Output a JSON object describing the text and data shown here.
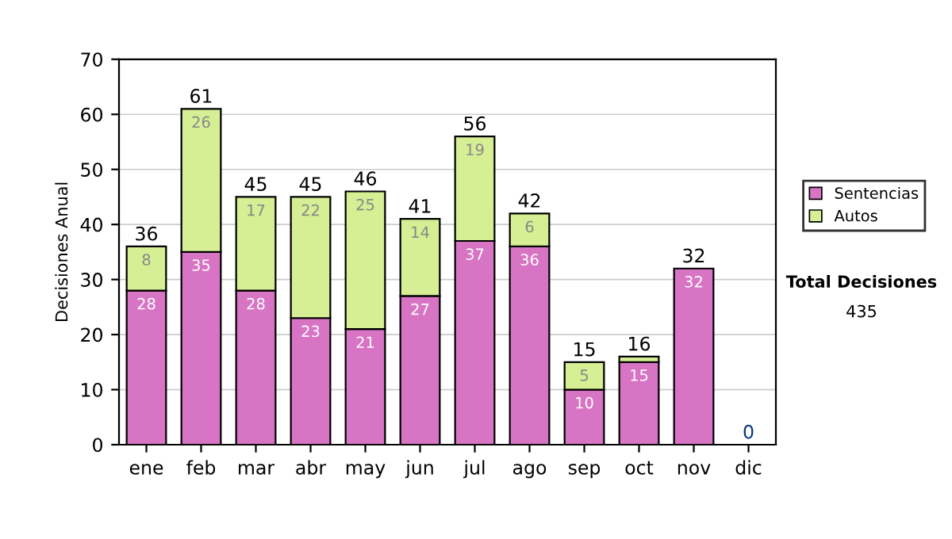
{
  "chart_data": {
    "type": "bar",
    "stacked": true,
    "ylabel": "Decisiones Anual",
    "categories": [
      "ene",
      "feb",
      "mar",
      "abr",
      "may",
      "jun",
      "jul",
      "ago",
      "sep",
      "oct",
      "nov",
      "dic"
    ],
    "series": [
      {
        "name": "Sentencias",
        "color": "#d874c4",
        "values": [
          28,
          35,
          28,
          23,
          21,
          27,
          37,
          36,
          10,
          15,
          32,
          0
        ],
        "value_labels": [
          "28",
          "35",
          "28",
          "23",
          "21",
          "27",
          "37",
          "36",
          "10",
          "15",
          "32",
          null
        ]
      },
      {
        "name": "Autos",
        "color": "#d6ee94",
        "values": [
          8,
          26,
          17,
          22,
          25,
          14,
          19,
          6,
          5,
          1,
          0,
          0
        ],
        "value_labels": [
          "8",
          "26",
          "17",
          "22",
          "25",
          "14",
          "19",
          "6",
          "5",
          null,
          null,
          null
        ]
      }
    ],
    "totals": [
      "36",
      "61",
      "45",
      "45",
      "46",
      "41",
      "56",
      "42",
      "15",
      "16",
      "32",
      "0"
    ],
    "ylim": [
      0,
      70
    ],
    "yticks": [
      0,
      10,
      20,
      30,
      40,
      50,
      60,
      70
    ],
    "grid": "y",
    "legend": "right",
    "annotations": [
      "Total Decisiones",
      "435"
    ]
  }
}
